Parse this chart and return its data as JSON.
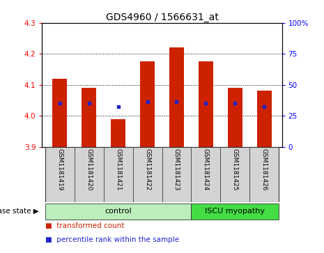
{
  "title": "GDS4960 / 1566631_at",
  "samples": [
    "GSM1181419",
    "GSM1181420",
    "GSM1181421",
    "GSM1181422",
    "GSM1181423",
    "GSM1181424",
    "GSM1181425",
    "GSM1181426"
  ],
  "bar_tops": [
    4.12,
    4.09,
    3.99,
    4.175,
    4.22,
    4.175,
    4.09,
    4.08
  ],
  "blue_dots": [
    4.04,
    4.04,
    4.03,
    4.045,
    4.045,
    4.04,
    4.04,
    4.03
  ],
  "bar_bottom": 3.9,
  "ylim": [
    3.9,
    4.3
  ],
  "yticks_left": [
    3.9,
    4.0,
    4.1,
    4.2,
    4.3
  ],
  "yticks_right": [
    0,
    25,
    50,
    75,
    100
  ],
  "bar_color": "#cc2200",
  "dot_color": "#2222cc",
  "n_control": 5,
  "control_label": "control",
  "iscu_label": "ISCU myopathy",
  "control_color": "#bbeebb",
  "iscu_color": "#44dd44",
  "disease_state_label": "disease state",
  "legend_red_label": "transformed count",
  "legend_blue_label": "percentile rank within the sample",
  "background_color": "#ffffff",
  "title_fontsize": 10,
  "tick_fontsize": 7.5,
  "label_fontsize": 6.5,
  "bar_width": 0.5
}
